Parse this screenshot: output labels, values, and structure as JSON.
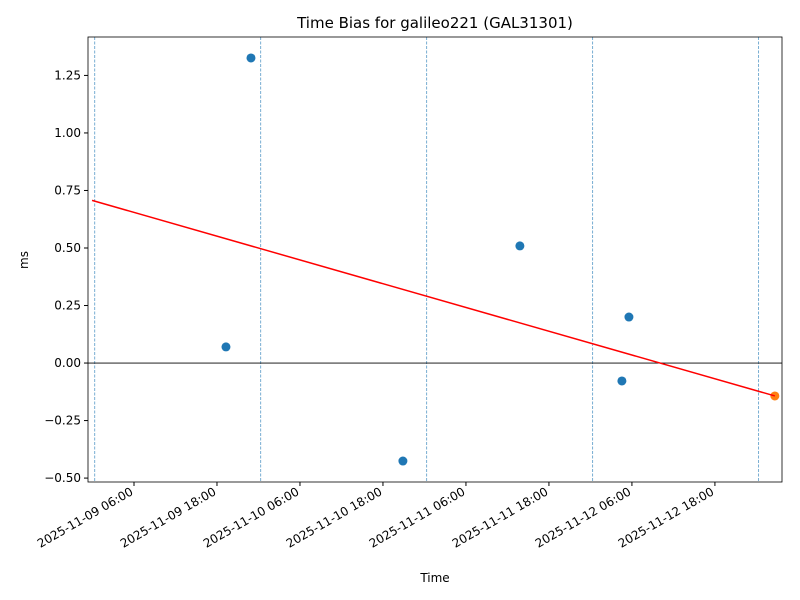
{
  "chart_data": {
    "type": "scatter",
    "title": "Time Bias for galileo221 (GAL31301)",
    "x_label": "Time",
    "y_label": "ms",
    "series": [
      {
        "type": "scatter",
        "color": "#1f77b4",
        "x": [
          "2025-11-09 19:18",
          "2025-11-09 22:55",
          "2025-11-10 20:53",
          "2025-11-11 13:48",
          "2025-11-12 04:33",
          "2025-11-12 05:34"
        ],
        "values": [
          0.07,
          1.326,
          -0.426,
          0.509,
          -0.078,
          0.2
        ]
      },
      {
        "type": "scatter",
        "color": "#ff7f0e",
        "x": [
          "2025-11-13 02:40"
        ],
        "values": [
          -0.143
        ]
      },
      {
        "type": "line",
        "color": "#ff0000",
        "x": [
          "2025-11-08 23:56",
          "2025-11-13 02:40"
        ],
        "values": [
          0.707,
          -0.143
        ]
      }
    ],
    "xlim": [
      "2025-11-08 23:21",
      "2025-11-13 03:42"
    ],
    "xticks": [
      "2025-11-09 06:00",
      "2025-11-09 18:00",
      "2025-11-10 06:00",
      "2025-11-10 18:00",
      "2025-11-11 06:00",
      "2025-11-11 18:00",
      "2025-11-12 06:00",
      "2025-11-12 18:00"
    ],
    "ylim": [
      -0.517,
      1.417
    ],
    "yticks": [
      {
        "value": -0.5,
        "label": "−0.50"
      },
      {
        "value": -0.25,
        "label": "−0.25"
      },
      {
        "value": 0,
        "label": "0.00"
      },
      {
        "value": 0.25,
        "label": "0.25"
      },
      {
        "value": 0.5,
        "label": "0.50"
      },
      {
        "value": 0.75,
        "label": "0.75"
      },
      {
        "value": 1,
        "label": "1.00"
      },
      {
        "value": 1.25,
        "label": "1.25"
      }
    ],
    "vlines": [
      "2025-11-09 00:20",
      "2025-11-10 00:20",
      "2025-11-11 00:20",
      "2025-11-12 00:20",
      "2025-11-13 00:20"
    ],
    "vline_color": "#1f77b4",
    "hline": 0,
    "hline_color": "#000000"
  }
}
